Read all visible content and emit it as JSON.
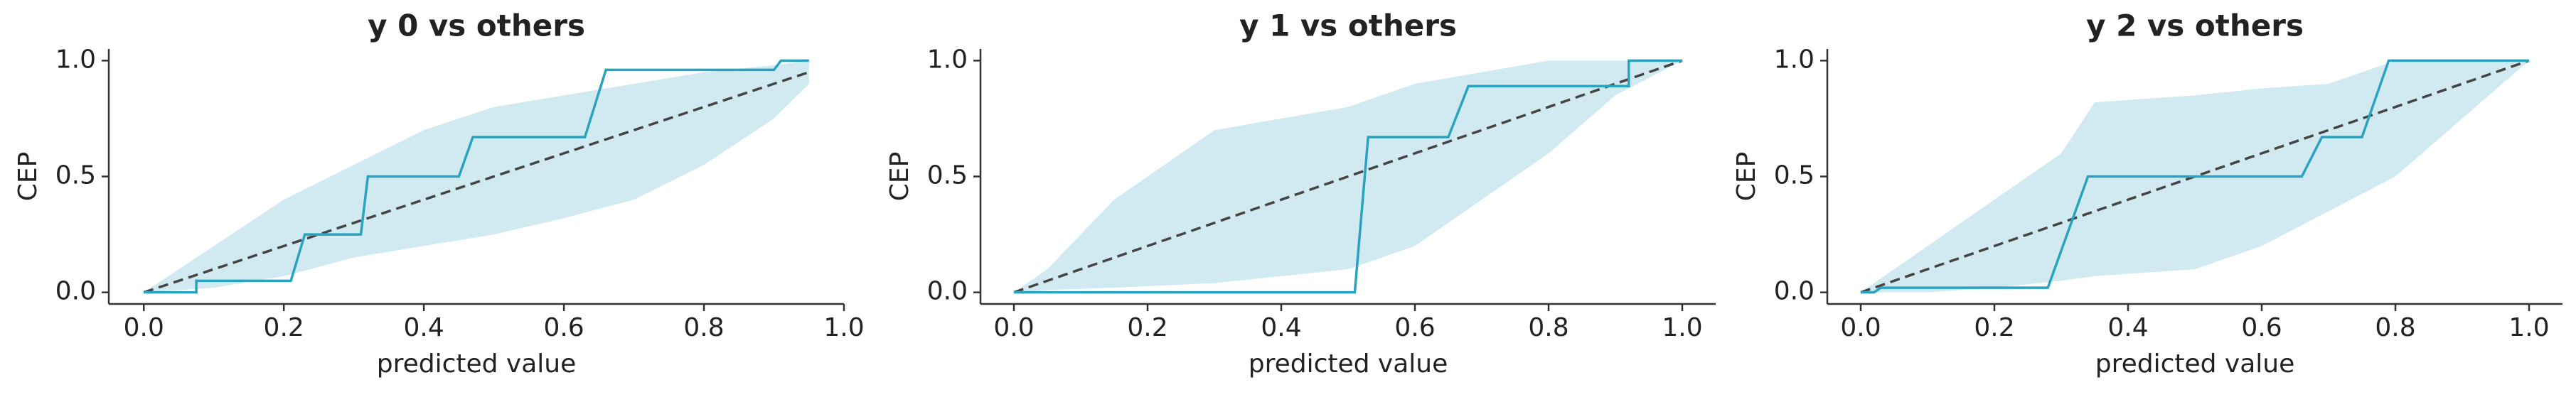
{
  "chart_data": [
    {
      "type": "line",
      "title": "y 0 vs others",
      "xlabel": "predicted value",
      "ylabel": "CEP",
      "xlim": [
        -0.05,
        1.0
      ],
      "ylim": [
        -0.05,
        1.05
      ],
      "xticks": [
        {
          "value": 0,
          "label": "0.0"
        },
        0.2,
        0.4,
        0.6,
        0.8,
        {
          "value": 1,
          "label": "1.0"
        }
      ],
      "yticks": [
        {
          "value": 0,
          "label": "0.0"
        },
        0.5,
        {
          "value": 1,
          "label": "1.0"
        }
      ],
      "band": {
        "color": "#cce8ef",
        "x": [
          0,
          0.1,
          0.2,
          0.3,
          0.4,
          0.5,
          0.6,
          0.7,
          0.8,
          0.9,
          0.95
        ],
        "upper": [
          0,
          0.2,
          0.4,
          0.55,
          0.7,
          0.8,
          0.85,
          0.9,
          0.95,
          0.98,
          1.0
        ],
        "lower": [
          0,
          0.02,
          0.07,
          0.15,
          0.2,
          0.25,
          0.32,
          0.4,
          0.55,
          0.75,
          0.9
        ]
      },
      "reference": {
        "color": "#444444",
        "x": [
          0,
          0.95
        ],
        "values": [
          0,
          0.95
        ]
      },
      "series": [
        {
          "color": "#2aa3c0",
          "x": [
            0,
            0.075,
            0.075,
            0.21,
            0.23,
            0.31,
            0.32,
            0.45,
            0.47,
            0.63,
            0.66,
            0.9,
            0.91,
            0.95
          ],
          "values": [
            0,
            0,
            0.05,
            0.05,
            0.25,
            0.25,
            0.5,
            0.5,
            0.67,
            0.67,
            0.96,
            0.96,
            1.0,
            1.0
          ]
        }
      ]
    },
    {
      "type": "line",
      "title": "y 1 vs others",
      "xlabel": "predicted value",
      "ylabel": "CEP",
      "xlim": [
        -0.05,
        1.05
      ],
      "ylim": [
        -0.05,
        1.05
      ],
      "xticks": [
        {
          "value": 0,
          "label": "0.0"
        },
        0.2,
        0.4,
        0.6,
        0.8,
        {
          "value": 1,
          "label": "1.0"
        }
      ],
      "yticks": [
        {
          "value": 0,
          "label": "0.0"
        },
        0.5,
        {
          "value": 1,
          "label": "1.0"
        }
      ],
      "band": {
        "color": "#cce8ef",
        "x": [
          0,
          0.05,
          0.15,
          0.3,
          0.4,
          0.5,
          0.6,
          0.7,
          0.8,
          0.9,
          1.0
        ],
        "upper": [
          0,
          0.1,
          0.4,
          0.7,
          0.75,
          0.8,
          0.9,
          0.95,
          1.0,
          1.0,
          1.0
        ],
        "lower": [
          0,
          0.01,
          0.02,
          0.04,
          0.07,
          0.1,
          0.2,
          0.4,
          0.6,
          0.85,
          1.0
        ]
      },
      "reference": {
        "color": "#444444",
        "x": [
          0,
          1.0
        ],
        "values": [
          0,
          1.0
        ]
      },
      "series": [
        {
          "color": "#2aa3c0",
          "x": [
            0,
            0.51,
            0.53,
            0.65,
            0.68,
            0.92,
            0.92,
            1.0
          ],
          "values": [
            0,
            0,
            0.67,
            0.67,
            0.89,
            0.89,
            1.0,
            1.0
          ]
        }
      ]
    },
    {
      "type": "line",
      "title": "y 2 vs others",
      "xlabel": "predicted value",
      "ylabel": "CEP",
      "xlim": [
        -0.05,
        1.05
      ],
      "ylim": [
        -0.05,
        1.05
      ],
      "xticks": [
        {
          "value": 0,
          "label": "0.0"
        },
        0.2,
        0.4,
        0.6,
        0.8,
        {
          "value": 1,
          "label": "1.0"
        }
      ],
      "yticks": [
        {
          "value": 0,
          "label": "0.0"
        },
        0.5,
        {
          "value": 1,
          "label": "1.0"
        }
      ],
      "band": {
        "color": "#cce8ef",
        "x": [
          0,
          0.1,
          0.2,
          0.3,
          0.35,
          0.5,
          0.6,
          0.7,
          0.8,
          0.9,
          1.0
        ],
        "upper": [
          0,
          0.2,
          0.4,
          0.6,
          0.82,
          0.85,
          0.88,
          0.9,
          1.0,
          1.0,
          1.0
        ],
        "lower": [
          0,
          0,
          0.02,
          0.05,
          0.07,
          0.1,
          0.2,
          0.35,
          0.5,
          0.75,
          1.0
        ]
      },
      "reference": {
        "color": "#444444",
        "x": [
          0,
          1.0
        ],
        "values": [
          0,
          1.0
        ]
      },
      "series": [
        {
          "color": "#2aa3c0",
          "x": [
            0,
            0.02,
            0.03,
            0.28,
            0.34,
            0.66,
            0.69,
            0.75,
            0.79,
            1.0
          ],
          "values": [
            0,
            0,
            0.02,
            0.02,
            0.5,
            0.5,
            0.67,
            0.67,
            1.0,
            1.0
          ]
        }
      ]
    }
  ]
}
